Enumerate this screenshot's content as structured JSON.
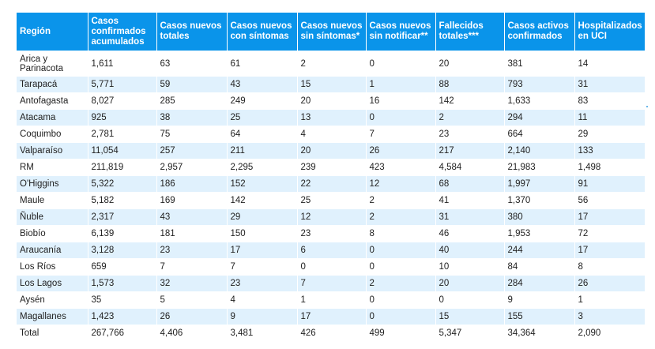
{
  "headers": [
    "Región",
    "Casos confirmados acumulados",
    "Casos nuevos totales",
    "Casos nuevos con síntomas",
    "Casos nuevos sin síntomas*",
    "Casos nuevos sin notificar**",
    "Fallecidos totales***",
    "Casos activos confirmados",
    "Hospitalizados en UCI"
  ],
  "rows": [
    [
      "Arica y Parinacota",
      "1,611",
      "63",
      "61",
      "2",
      "0",
      "20",
      "381",
      "14"
    ],
    [
      "Tarapacá",
      "5,771",
      "59",
      "43",
      "15",
      "1",
      "88",
      "793",
      "31"
    ],
    [
      "Antofagasta",
      "8,027",
      "285",
      "249",
      "20",
      "16",
      "142",
      "1,633",
      "83"
    ],
    [
      "Atacama",
      "925",
      "38",
      "25",
      "13",
      "0",
      "2",
      "294",
      "11"
    ],
    [
      "Coquimbo",
      "2,781",
      "75",
      "64",
      "4",
      "7",
      "23",
      "664",
      "29"
    ],
    [
      "Valparaíso",
      "11,054",
      "257",
      "211",
      "20",
      "26",
      "217",
      "2,140",
      "133"
    ],
    [
      "RM",
      "211,819",
      "2,957",
      "2,295",
      "239",
      "423",
      "4,584",
      "21,983",
      "1,498"
    ],
    [
      "O'Higgins",
      "5,322",
      "186",
      "152",
      "22",
      "12",
      "68",
      "1,997",
      "91"
    ],
    [
      "Maule",
      "5,182",
      "169",
      "142",
      "25",
      "2",
      "41",
      "1,370",
      "56"
    ],
    [
      "Ñuble",
      "2,317",
      "43",
      "29",
      "12",
      "2",
      "31",
      "380",
      "17"
    ],
    [
      "Biobío",
      "6,139",
      "181",
      "150",
      "23",
      "8",
      "46",
      "1,953",
      "72"
    ],
    [
      "Araucanía",
      "3,128",
      "23",
      "17",
      "6",
      "0",
      "40",
      "244",
      "17"
    ],
    [
      "Los Ríos",
      "659",
      "7",
      "7",
      "0",
      "0",
      "10",
      "84",
      "8"
    ],
    [
      "Los Lagos",
      "1,573",
      "32",
      "23",
      "7",
      "2",
      "20",
      "284",
      "26"
    ],
    [
      "Aysén",
      "35",
      "5",
      "4",
      "1",
      "0",
      "0",
      "9",
      "1"
    ],
    [
      "Magallanes",
      "1,423",
      "26",
      "9",
      "17",
      "0",
      "15",
      "155",
      "3"
    ],
    [
      "Total",
      "267,766",
      "4,406",
      "3,481",
      "426",
      "499",
      "5,347",
      "34,364",
      "2,090"
    ]
  ]
}
